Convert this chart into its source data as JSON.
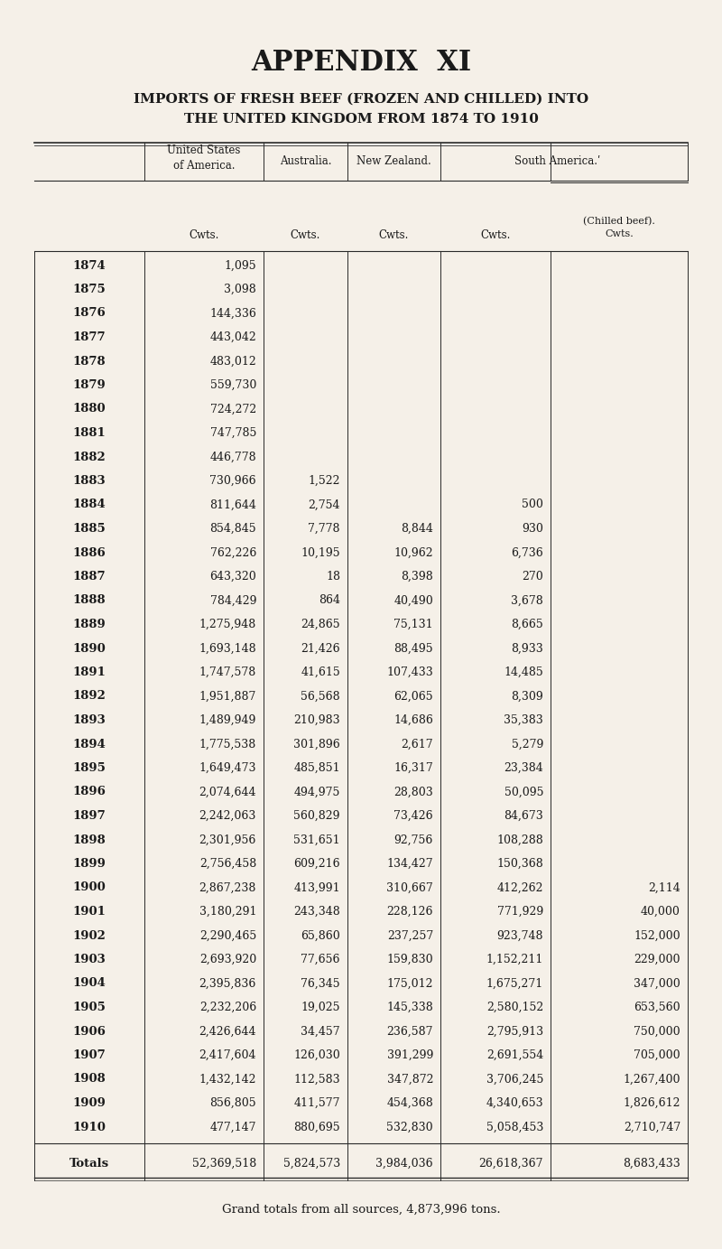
{
  "title1": "APPENDIX  XI",
  "title2": "IMPORTS OF FRESH BEEF (FROZEN AND CHILLED) INTO",
  "title3": "THE UNITED KINGDOM FROM 1874 TO 1910",
  "col_headers": [
    "United States\nof America.",
    "Australia.",
    "New Zealand.",
    "South America.ʹ"
  ],
  "col_subheaders": [
    "Cwts.",
    "Cwts.",
    "Cwts.",
    "Cwts.",
    "(Chilled beef).\nCwts."
  ],
  "footer": "Grand totals from all sources, 4,873,996 tons.",
  "background_color": "#f5f0e8",
  "years": [
    1874,
    1875,
    1876,
    1877,
    1878,
    1879,
    1880,
    1881,
    1882,
    1883,
    1884,
    1885,
    1886,
    1887,
    1888,
    1889,
    1890,
    1891,
    1892,
    1893,
    1894,
    1895,
    1896,
    1897,
    1898,
    1899,
    1900,
    1901,
    1902,
    1903,
    1904,
    1905,
    1906,
    1907,
    1908,
    1909,
    1910
  ],
  "usa": [
    "1,095",
    "3,098",
    "144,336",
    "443,042",
    "483,012",
    "559,730",
    "724,272",
    "747,785",
    "446,778",
    "730,966",
    "811,644",
    "854,845",
    "762,226",
    "643,320",
    "784,429",
    "1,275,948",
    "1,693,148",
    "1,747,578",
    "1,951,887",
    "1,489,949",
    "1,775,538",
    "1,649,473",
    "2,074,644",
    "2,242,063",
    "2,301,956",
    "2,756,458",
    "2,867,238",
    "3,180,291",
    "2,290,465",
    "2,693,920",
    "2,395,836",
    "2,232,206",
    "2,426,644",
    "2,417,604",
    "1,432,142",
    "856,805",
    "477,147"
  ],
  "australia": [
    "",
    "",
    "",
    "",
    "",
    "",
    "",
    "",
    "",
    "1,522",
    "2,754",
    "7,778",
    "10,195",
    "18",
    "864",
    "24,865",
    "21,426",
    "41,615",
    "56,568",
    "210,983",
    "301,896",
    "485,851",
    "494,975",
    "560,829",
    "531,651",
    "609,216",
    "413,991",
    "243,348",
    "65,860",
    "77,656",
    "76,345",
    "19,025",
    "34,457",
    "126,030",
    "112,583",
    "411,577",
    "880,695"
  ],
  "newzealand": [
    "",
    "",
    "",
    "",
    "",
    "",
    "",
    "",
    "",
    "",
    "",
    "8,844",
    "10,962",
    "8,398",
    "40,490",
    "75,131",
    "88,495",
    "107,433",
    "62,065",
    "14,686",
    "2,617",
    "16,317",
    "28,803",
    "73,426",
    "92,756",
    "134,427",
    "310,667",
    "228,126",
    "237,257",
    "159,830",
    "175,012",
    "145,338",
    "236,587",
    "391,299",
    "347,872",
    "454,368",
    "532,830"
  ],
  "southamerica": [
    "",
    "",
    "",
    "",
    "",
    "",
    "",
    "",
    "",
    "",
    "500",
    "930",
    "6,736",
    "270",
    "3,678",
    "8,665",
    "8,933",
    "14,485",
    "8,309",
    "35,383",
    "5,279",
    "23,384",
    "50,095",
    "84,673",
    "108,288",
    "150,368",
    "412,262",
    "771,929",
    "923,748",
    "1,152,211",
    "1,675,271",
    "2,580,152",
    "2,795,913",
    "2,691,554",
    "3,706,245",
    "4,340,653",
    "5,058,453"
  ],
  "chilled": [
    "",
    "",
    "",
    "",
    "",
    "",
    "",
    "",
    "",
    "",
    "",
    "",
    "",
    "",
    "",
    "",
    "",
    "",
    "",
    "",
    "",
    "",
    "",
    "",
    "",
    "",
    "2,114",
    "40,000",
    "152,000",
    "229,000",
    "347,000",
    "653,560",
    "750,000",
    "705,000",
    "1,267,400",
    "1,826,612",
    "2,710,747"
  ],
  "totals": [
    "52,369,518",
    "5,824,573",
    "3,984,036",
    "26,618,367",
    "8,683,433"
  ]
}
